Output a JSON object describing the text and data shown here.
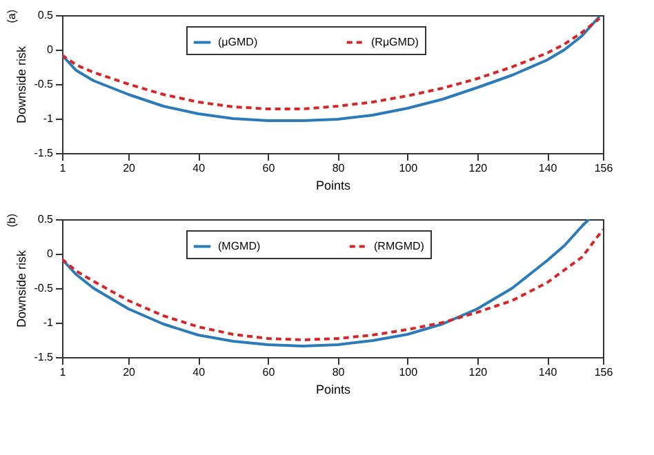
{
  "chart_data": [
    {
      "type": "line",
      "title": "(a)",
      "xlabel": "Points",
      "ylabel": "Downside risk",
      "xlim": [
        1,
        156
      ],
      "xticks": [
        1,
        20,
        40,
        60,
        80,
        100,
        120,
        140,
        156
      ],
      "ylim": [
        -1.5,
        0.5
      ],
      "yticks": [
        -1.5,
        -1,
        -0.5,
        0,
        0.5
      ],
      "grid": false,
      "legend": "top",
      "x": [
        1,
        5,
        10,
        20,
        30,
        40,
        50,
        60,
        70,
        80,
        90,
        100,
        110,
        120,
        130,
        140,
        145,
        150,
        155
      ],
      "series": [
        {
          "name": "(μGMD)",
          "color": "#2b7bba",
          "line_style": "solid",
          "values": [
            -0.08,
            -0.3,
            -0.45,
            -0.65,
            -0.82,
            -0.93,
            -1.0,
            -1.03,
            -1.03,
            -1.01,
            -0.95,
            -0.85,
            -0.72,
            -0.55,
            -0.37,
            -0.15,
            0,
            0.2,
            0.48
          ]
        },
        {
          "name": "(RμGMD)",
          "color": "#d62728",
          "line_style": "dashed",
          "values": [
            -0.08,
            -0.22,
            -0.33,
            -0.5,
            -0.65,
            -0.76,
            -0.83,
            -0.86,
            -0.86,
            -0.82,
            -0.76,
            -0.67,
            -0.56,
            -0.42,
            -0.25,
            -0.05,
            0.08,
            0.25,
            0.45
          ]
        }
      ]
    },
    {
      "type": "line",
      "title": "(b)",
      "xlabel": "Points",
      "ylabel": "Downside risk",
      "xlim": [
        1,
        156
      ],
      "xticks": [
        1,
        20,
        40,
        60,
        80,
        100,
        120,
        140,
        156
      ],
      "ylim": [
        -1.5,
        0.5
      ],
      "yticks": [
        -1.5,
        -1,
        -0.5,
        0,
        0.5
      ],
      "grid": false,
      "legend": "top",
      "series": [
        {
          "name": "(MGMD)",
          "color": "#2b7bba",
          "line_style": "solid",
          "x": [
            1,
            5,
            10,
            20,
            30,
            40,
            50,
            60,
            70,
            80,
            90,
            100,
            110,
            120,
            130,
            140,
            145,
            150,
            152
          ],
          "values": [
            -0.08,
            -0.3,
            -0.5,
            -0.8,
            -1.02,
            -1.18,
            -1.27,
            -1.32,
            -1.34,
            -1.32,
            -1.26,
            -1.17,
            -1.02,
            -0.8,
            -0.5,
            -0.1,
            0.12,
            0.4,
            0.5
          ]
        },
        {
          "name": "(RMGMD)",
          "color": "#d62728",
          "line_style": "dashed",
          "x": [
            1,
            5,
            10,
            20,
            30,
            40,
            50,
            60,
            70,
            80,
            90,
            100,
            110,
            120,
            130,
            140,
            150,
            156
          ],
          "values": [
            -0.08,
            -0.25,
            -0.4,
            -0.68,
            -0.9,
            -1.06,
            -1.17,
            -1.23,
            -1.25,
            -1.23,
            -1.18,
            -1.1,
            -1.0,
            -0.85,
            -0.68,
            -0.42,
            -0.05,
            0.35
          ]
        }
      ]
    }
  ]
}
